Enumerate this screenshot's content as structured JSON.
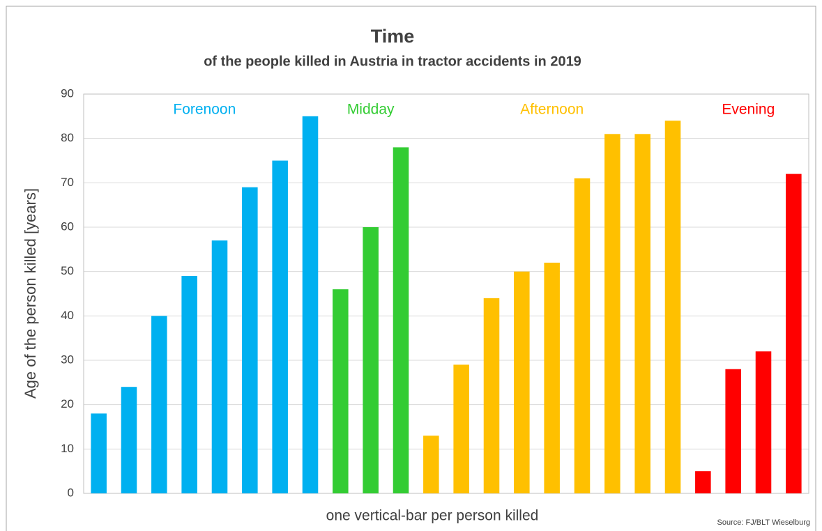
{
  "chart_data": {
    "type": "bar",
    "title": "Time",
    "subtitle": "of the people killed in Austria in tractor accidents in 2019",
    "y_label": "Age of the person killed  [years]",
    "x_label": "one vertical-bar per person killed",
    "source": "Source: FJ/BLT Wieselburg",
    "series": [
      {
        "name": "Forenoon",
        "color": "#00b0f0",
        "values": [
          18,
          24,
          40,
          49,
          57,
          69,
          75,
          85
        ]
      },
      {
        "name": "Midday",
        "color": "#33cc33",
        "values": [
          46,
          60,
          78
        ]
      },
      {
        "name": "Afternoon",
        "color": "#ffc000",
        "values": [
          13,
          29,
          44,
          50,
          52,
          71,
          81,
          81,
          84
        ]
      },
      {
        "name": "Evening",
        "color": "#ff0000",
        "values": [
          5,
          28,
          32,
          72
        ]
      }
    ],
    "ylim": [
      0,
      90
    ],
    "yticks": [
      0,
      10,
      20,
      30,
      40,
      50,
      60,
      70,
      80,
      90
    ],
    "grid": true
  }
}
